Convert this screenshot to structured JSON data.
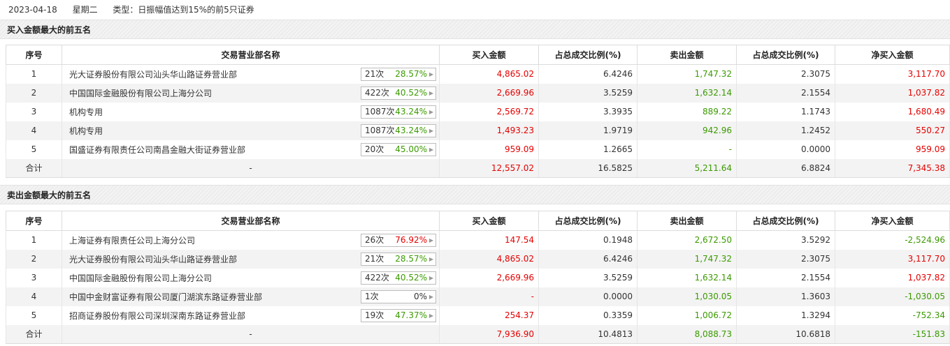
{
  "header": {
    "date": "2023-04-18",
    "weekday": "星期二",
    "type_text": "类型：日振幅值达到15%的前5只证券"
  },
  "columns": [
    "序号",
    "交易营业部名称",
    "买入金额",
    "占总成交比例(%)",
    "卖出金额",
    "占总成交比例(%)",
    "净买入金额"
  ],
  "colors": {
    "up": "#e60000",
    "down": "#3b9a00"
  },
  "buy_table": {
    "title": "买入金额最大的前五名",
    "rows": [
      {
        "idx": "1",
        "name": "光大证券股份有限公司汕头华山路证券营业部",
        "count": "21次",
        "pct": "28.57%",
        "pct_color": "green",
        "buy": "4,865.02",
        "buy_ratio": "6.4246",
        "sell": "1,747.32",
        "sell_ratio": "2.3075",
        "net": "3,117.70",
        "net_color": "red"
      },
      {
        "idx": "2",
        "name": "中国国际金融股份有限公司上海分公司",
        "count": "422次",
        "pct": "40.52%",
        "pct_color": "green",
        "buy": "2,669.96",
        "buy_ratio": "3.5259",
        "sell": "1,632.14",
        "sell_ratio": "2.1554",
        "net": "1,037.82",
        "net_color": "red"
      },
      {
        "idx": "3",
        "name": "机构专用",
        "count": "1087次",
        "pct": "43.24%",
        "pct_color": "green",
        "buy": "2,569.72",
        "buy_ratio": "3.3935",
        "sell": "889.22",
        "sell_ratio": "1.1743",
        "net": "1,680.49",
        "net_color": "red"
      },
      {
        "idx": "4",
        "name": "机构专用",
        "count": "1087次",
        "pct": "43.24%",
        "pct_color": "green",
        "buy": "1,493.23",
        "buy_ratio": "1.9719",
        "sell": "942.96",
        "sell_ratio": "1.2452",
        "net": "550.27",
        "net_color": "red"
      },
      {
        "idx": "5",
        "name": "国盛证券有限责任公司南昌金融大街证券营业部",
        "count": "20次",
        "pct": "45.00%",
        "pct_color": "green",
        "buy": "959.09",
        "buy_ratio": "1.2665",
        "sell": "-",
        "sell_ratio": "0.0000",
        "net": "959.09",
        "net_color": "red"
      }
    ],
    "total": {
      "label": "合计",
      "name": "-",
      "buy": "12,557.02",
      "buy_ratio": "16.5825",
      "sell": "5,211.64",
      "sell_ratio": "6.8824",
      "net": "7,345.38",
      "net_color": "red"
    }
  },
  "sell_table": {
    "title": "卖出金额最大的前五名",
    "rows": [
      {
        "idx": "1",
        "name": "上海证券有限责任公司上海分公司",
        "count": "26次",
        "pct": "76.92%",
        "pct_color": "red",
        "buy": "147.54",
        "buy_ratio": "0.1948",
        "sell": "2,672.50",
        "sell_ratio": "3.5292",
        "net": "-2,524.96",
        "net_color": "green"
      },
      {
        "idx": "2",
        "name": "光大证券股份有限公司汕头华山路证券营业部",
        "count": "21次",
        "pct": "28.57%",
        "pct_color": "green",
        "buy": "4,865.02",
        "buy_ratio": "6.4246",
        "sell": "1,747.32",
        "sell_ratio": "2.3075",
        "net": "3,117.70",
        "net_color": "red"
      },
      {
        "idx": "3",
        "name": "中国国际金融股份有限公司上海分公司",
        "count": "422次",
        "pct": "40.52%",
        "pct_color": "green",
        "buy": "2,669.96",
        "buy_ratio": "3.5259",
        "sell": "1,632.14",
        "sell_ratio": "2.1554",
        "net": "1,037.82",
        "net_color": "red"
      },
      {
        "idx": "4",
        "name": "中国中金财富证券有限公司厦门湖滨东路证券营业部",
        "count": "1次",
        "pct": "0%",
        "pct_color": "dark",
        "buy": "-",
        "buy_ratio": "0.0000",
        "sell": "1,030.05",
        "sell_ratio": "1.3603",
        "net": "-1,030.05",
        "net_color": "green"
      },
      {
        "idx": "5",
        "name": "招商证券股份有限公司深圳深南东路证券营业部",
        "count": "19次",
        "pct": "47.37%",
        "pct_color": "green",
        "buy": "254.37",
        "buy_ratio": "0.3359",
        "sell": "1,006.72",
        "sell_ratio": "1.3294",
        "net": "-752.34",
        "net_color": "green"
      }
    ],
    "total": {
      "label": "合计",
      "name": "-",
      "buy": "7,936.90",
      "buy_ratio": "10.4813",
      "sell": "8,088.73",
      "sell_ratio": "10.6818",
      "net": "-151.83",
      "net_color": "green"
    }
  }
}
